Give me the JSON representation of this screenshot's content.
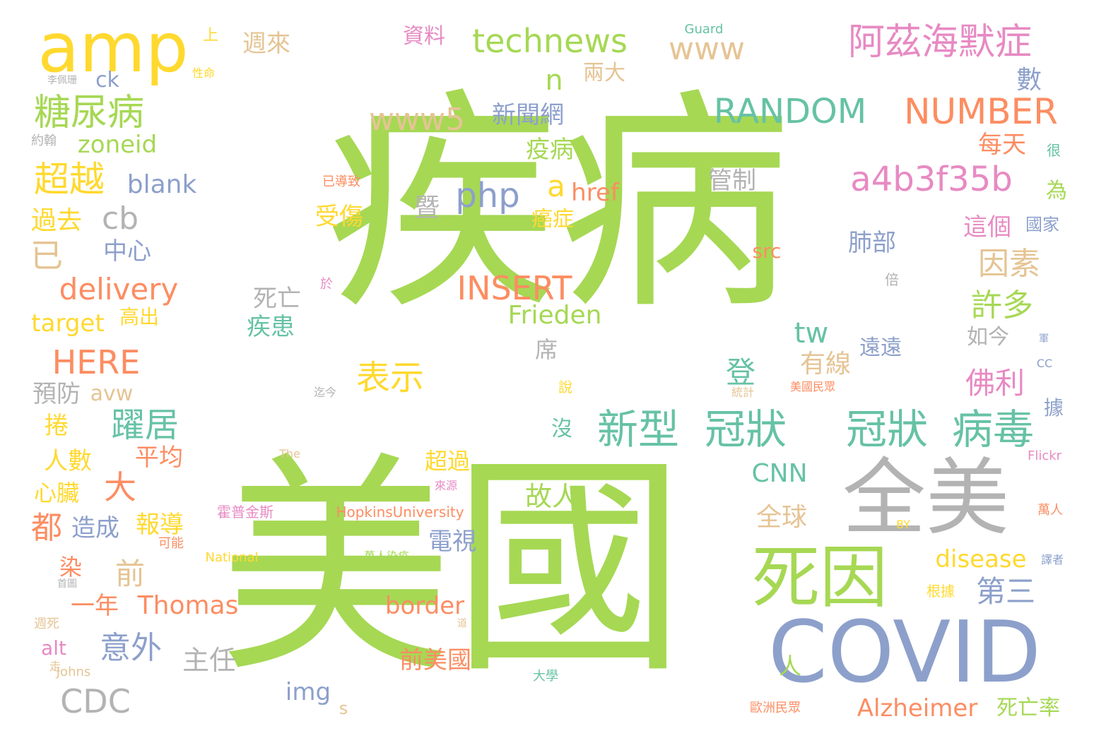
{
  "words": [
    {
      "text": "疾病",
      "color": "#a6d854"
    },
    {
      "text": "美國",
      "color": "#a6d854"
    },
    {
      "text": "amp",
      "color": "#ffd92f"
    },
    {
      "text": "全美",
      "color": "#b3b3b3"
    },
    {
      "text": "COVID",
      "color": "#8da0cb"
    },
    {
      "text": "死因",
      "color": "#a6d854"
    },
    {
      "text": "新型",
      "color": "#66c2a5"
    },
    {
      "text": "冠狀",
      "color": "#66c2a5"
    },
    {
      "text": "冠狀",
      "color": "#66c2a5"
    },
    {
      "text": "病毒",
      "color": "#66c2a5"
    },
    {
      "text": "technews",
      "color": "#a6d854"
    },
    {
      "text": "阿茲海默症",
      "color": "#e78ac3"
    },
    {
      "text": "www",
      "color": "#e5c494"
    },
    {
      "text": "RANDOM",
      "color": "#66c2a5"
    },
    {
      "text": "NUMBER",
      "color": "#fc8d62"
    },
    {
      "text": "a4b3f35b",
      "color": "#e78ac3"
    },
    {
      "text": "www5",
      "color": "#e5c494"
    },
    {
      "text": "糖尿病",
      "color": "#a6d854"
    },
    {
      "text": "delivery",
      "color": "#fc8d62"
    },
    {
      "text": "INSERT",
      "color": "#fc8d62"
    },
    {
      "text": "HERE",
      "color": "#fc8d62"
    },
    {
      "text": "php",
      "color": "#8da0cb"
    },
    {
      "text": "超越",
      "color": "#ffd92f"
    },
    {
      "text": "表示",
      "color": "#ffd92f"
    },
    {
      "text": "躍居",
      "color": "#66c2a5"
    },
    {
      "text": "意外",
      "color": "#8da0cb"
    },
    {
      "text": "Frieden",
      "color": "#a6d854"
    },
    {
      "text": "Thomas",
      "color": "#fc8d62"
    },
    {
      "text": "Alzheimer",
      "color": "#fc8d62"
    },
    {
      "text": "disease",
      "color": "#ffd92f"
    },
    {
      "text": "CNN",
      "color": "#66c2a5"
    },
    {
      "text": "CDC",
      "color": "#b3b3b3"
    },
    {
      "text": "border",
      "color": "#fc8d62"
    },
    {
      "text": "blank",
      "color": "#8da0cb"
    },
    {
      "text": "zoneid",
      "color": "#a6d854"
    },
    {
      "text": "target",
      "color": "#ffd92f"
    },
    {
      "text": "cb",
      "color": "#b3b3b3"
    },
    {
      "text": "tw",
      "color": "#66c2a5"
    },
    {
      "text": "n",
      "color": "#a6d854"
    },
    {
      "text": "a",
      "color": "#ffd92f"
    },
    {
      "text": "href",
      "color": "#fc8d62"
    },
    {
      "text": "src",
      "color": "#fc8d62"
    },
    {
      "text": "img",
      "color": "#8da0cb"
    },
    {
      "text": "alt",
      "color": "#e78ac3"
    },
    {
      "text": "avw",
      "color": "#e5c494"
    },
    {
      "text": "s",
      "color": "#e5c494"
    },
    {
      "text": "ck",
      "color": "#8da0cb"
    },
    {
      "text": "因素",
      "color": "#e5c494"
    },
    {
      "text": "許多",
      "color": "#a6d854"
    },
    {
      "text": "佛利",
      "color": "#e78ac3"
    },
    {
      "text": "第三",
      "color": "#8da0cb"
    },
    {
      "text": "新聞網",
      "color": "#8da0cb"
    },
    {
      "text": "疫病",
      "color": "#a6d854"
    },
    {
      "text": "資料",
      "color": "#e78ac3"
    },
    {
      "text": "週來",
      "color": "#e5c494"
    },
    {
      "text": "兩大",
      "color": "#e5c494"
    },
    {
      "text": "數",
      "color": "#8da0cb"
    },
    {
      "text": "每天",
      "color": "#fc8d62"
    },
    {
      "text": "管制",
      "color": "#b3b3b3"
    },
    {
      "text": "暨",
      "color": "#b3b3b3"
    },
    {
      "text": "受傷",
      "color": "#ffd92f"
    },
    {
      "text": "癌症",
      "color": "#ffd92f"
    },
    {
      "text": "這個",
      "color": "#e78ac3"
    },
    {
      "text": "為",
      "color": "#a6d854"
    },
    {
      "text": "肺部",
      "color": "#8da0cb"
    },
    {
      "text": "死亡",
      "color": "#b3b3b3"
    },
    {
      "text": "疾患",
      "color": "#66c2a5"
    },
    {
      "text": "席",
      "color": "#b3b3b3"
    },
    {
      "text": "登",
      "color": "#66c2a5"
    },
    {
      "text": "有線",
      "color": "#e5c494"
    },
    {
      "text": "如今",
      "color": "#b3b3b3"
    },
    {
      "text": "遠遠",
      "color": "#8da0cb"
    },
    {
      "text": "據",
      "color": "#8da0cb"
    },
    {
      "text": "沒",
      "color": "#66c2a5"
    },
    {
      "text": "已",
      "color": "#e5c494"
    },
    {
      "text": "中心",
      "color": "#8da0cb"
    },
    {
      "text": "過去",
      "color": "#ffd92f"
    },
    {
      "text": "高出",
      "color": "#ffd92f"
    },
    {
      "text": "預防",
      "color": "#b3b3b3"
    },
    {
      "text": "捲",
      "color": "#ffd92f"
    },
    {
      "text": "人數",
      "color": "#ffd92f"
    },
    {
      "text": "心臟",
      "color": "#ffd92f"
    },
    {
      "text": "都",
      "color": "#fc8d62"
    },
    {
      "text": "染",
      "color": "#fc8d62"
    },
    {
      "text": "一年",
      "color": "#fc8d62"
    },
    {
      "text": "造成",
      "color": "#8da0cb"
    },
    {
      "text": "大",
      "color": "#fc8d62"
    },
    {
      "text": "平均",
      "color": "#fc8d62"
    },
    {
      "text": "報導",
      "color": "#ffd92f"
    },
    {
      "text": "前",
      "color": "#e5c494"
    },
    {
      "text": "主任",
      "color": "#b3b3b3"
    },
    {
      "text": "故人",
      "color": "#a6d854"
    },
    {
      "text": "電視",
      "color": "#8da0cb"
    },
    {
      "text": "超過",
      "color": "#ffd92f"
    },
    {
      "text": "前美國",
      "color": "#fc8d62"
    },
    {
      "text": "全球",
      "color": "#e5c494"
    },
    {
      "text": "人",
      "color": "#a6d854"
    },
    {
      "text": "死亡率",
      "color": "#a6d854"
    },
    {
      "text": "上",
      "color": "#ffd92f"
    },
    {
      "text": "李佩珊",
      "color": "#b3b3b3"
    },
    {
      "text": "約翰",
      "color": "#b3b3b3"
    },
    {
      "text": "性命",
      "color": "#ffd92f"
    },
    {
      "text": "已導致",
      "color": "#fc8d62"
    },
    {
      "text": "於",
      "color": "#e78ac3"
    },
    {
      "text": "說",
      "color": "#ffd92f"
    },
    {
      "text": "迄今",
      "color": "#b3b3b3"
    },
    {
      "text": "統計",
      "color": "#e5c494"
    },
    {
      "text": "美國民眾",
      "color": "#fc8d62"
    },
    {
      "text": "霍普金斯",
      "color": "#e78ac3"
    },
    {
      "text": "HopkinsUniversity",
      "color": "#fc8d62"
    },
    {
      "text": "National",
      "color": "#ffd92f"
    },
    {
      "text": "萬人染疫",
      "color": "#a6d854"
    },
    {
      "text": "可能",
      "color": "#fc8d62"
    },
    {
      "text": "來源",
      "color": "#e78ac3"
    },
    {
      "text": "The",
      "color": "#e5c494"
    },
    {
      "text": "首圖",
      "color": "#b3b3b3"
    },
    {
      "text": "週死",
      "color": "#e5c494"
    },
    {
      "text": "Johns",
      "color": "#e5c494"
    },
    {
      "text": "走",
      "color": "#e5c494"
    },
    {
      "text": "道",
      "color": "#e5c494"
    },
    {
      "text": "大學",
      "color": "#66c2a5"
    },
    {
      "text": "歐洲民眾",
      "color": "#fc8d62"
    },
    {
      "text": "根據",
      "color": "#ffd92f"
    },
    {
      "text": "BY",
      "color": "#ffd92f"
    },
    {
      "text": "Flickr",
      "color": "#e78ac3"
    },
    {
      "text": "萬人",
      "color": "#fc8d62"
    },
    {
      "text": "譯者",
      "color": "#8da0cb"
    },
    {
      "text": "CC",
      "color": "#8da0cb"
    },
    {
      "text": "軍",
      "color": "#8da0cb"
    },
    {
      "text": "倍",
      "color": "#b3b3b3"
    },
    {
      "text": "國家",
      "color": "#8da0cb"
    },
    {
      "text": "很",
      "color": "#66c2a5"
    },
    {
      "text": "Guard",
      "color": "#66c2a5"
    }
  ]
}
